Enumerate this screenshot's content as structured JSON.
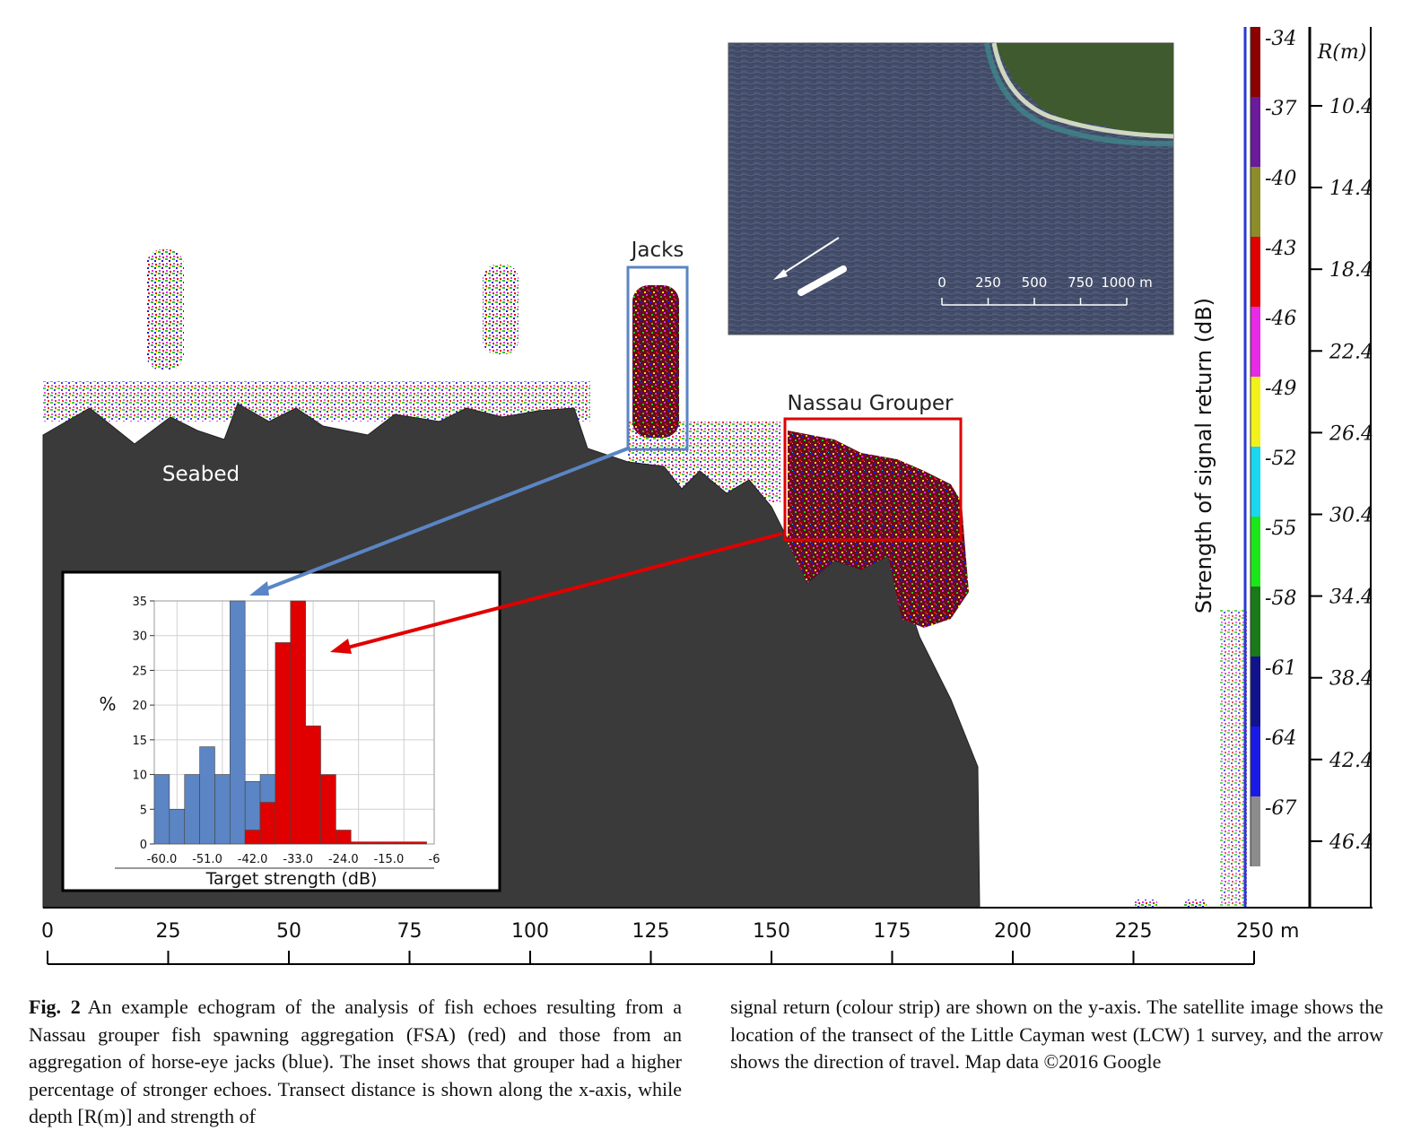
{
  "figure": {
    "labels": {
      "jacks": "Jacks",
      "grouper": "Nassau Grouper",
      "seabed": "Seabed",
      "colorbar_title": "Strength of signal return (dB)",
      "depth_title": "R(m)"
    },
    "x_axis": {
      "ticks": [
        "0",
        "25",
        "50",
        "75",
        "100",
        "125",
        "150",
        "175",
        "200",
        "225",
        "250 m"
      ]
    },
    "colorbar": {
      "values": [
        "-34",
        "-37",
        "-40",
        "-43",
        "-46",
        "-49",
        "-52",
        "-55",
        "-58",
        "-61",
        "-64",
        "-67"
      ],
      "colors": [
        "#8b0000",
        "#6a1a9a",
        "#8c8c2a",
        "#e00000",
        "#e62ae6",
        "#f2f21a",
        "#1ad6f0",
        "#1ae61a",
        "#1a7a1a",
        "#12128c",
        "#1a1ae6",
        "#8c8c8c"
      ]
    },
    "depth_axis": {
      "values": [
        "10.4",
        "14.4",
        "18.4",
        "22.4",
        "26.4",
        "30.4",
        "34.4",
        "38.4",
        "42.4",
        "46.4"
      ]
    },
    "satellite": {
      "scale_labels": [
        "0",
        "250",
        "500",
        "750",
        "1000 m"
      ]
    }
  },
  "chart_data": {
    "type": "bar",
    "xlabel": "Target strength (dB)",
    "ylabel": "%",
    "x_tick_labels": [
      "-60.0",
      "-51.0",
      "-42.0",
      "-33.0",
      "-24.0",
      "-15.0",
      "-6"
    ],
    "y_tick_labels": [
      "0",
      "5",
      "10",
      "15",
      "20",
      "25",
      "30",
      "35"
    ],
    "ylim": [
      0,
      35
    ],
    "xlim": [
      -61.5,
      -6
    ],
    "bin_width": 3,
    "series": [
      {
        "color": "#5b85c4",
        "x": [
          -60,
          -57,
          -54,
          -51,
          -48,
          -45,
          -42,
          -39
        ],
        "values": [
          10,
          5,
          10,
          14,
          10,
          35,
          9,
          10
        ]
      },
      {
        "color": "#e00000",
        "x": [
          -42,
          -39,
          -36,
          -33,
          -30,
          -27,
          -24,
          -21,
          -18,
          -15,
          -12,
          -9
        ],
        "values": [
          2,
          6,
          29,
          35,
          17,
          10,
          2,
          0.3,
          0.3,
          0.3,
          0.3,
          0.3
        ]
      }
    ],
    "grid": true
  },
  "caption": {
    "fig_num": "Fig. 2",
    "left": "An example echogram of the analysis of fish echoes resulting from a Nassau grouper fish spawning aggregation (FSA) (red) and those from an aggregation of horse-eye jacks (blue). The inset shows that grouper had a higher percentage of stronger echoes. Transect distance is shown along the x-axis, while depth [R(m)] and strength of",
    "right": "signal return (colour strip) are shown on the y-axis. The satellite image shows the location of the transect of the Little Cayman west (LCW) 1 survey, and the arrow shows the direction of travel. Map data ©2016 Google"
  }
}
